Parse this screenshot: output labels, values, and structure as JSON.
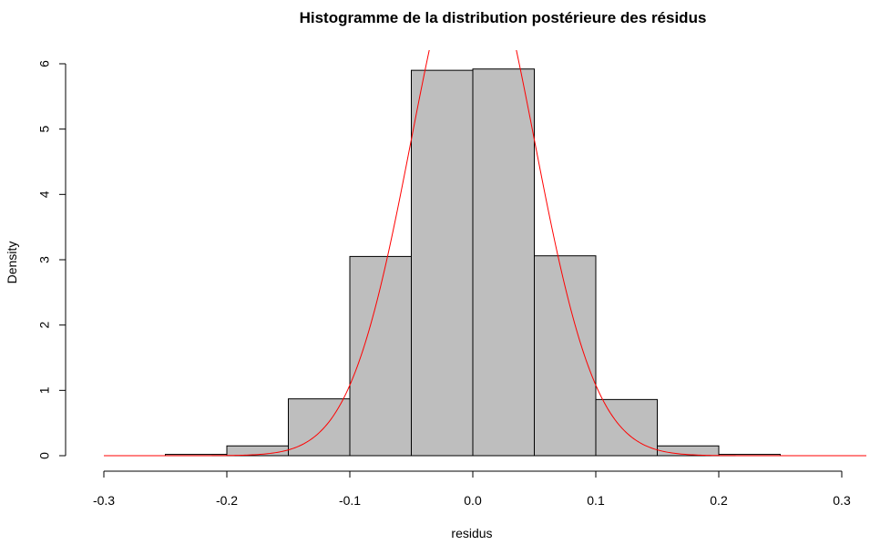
{
  "chart_data": {
    "type": "bar",
    "subtype": "histogram",
    "title": "Histogramme de la distribution postérieure des résidus",
    "xlabel": "residus",
    "ylabel": "Density",
    "xlim": [
      -0.3,
      0.32
    ],
    "ylim": [
      0,
      6
    ],
    "xticks": [
      "-0.3",
      "-0.2",
      "-0.1",
      "0.0",
      "0.1",
      "0.2",
      "0.3"
    ],
    "yticks": [
      "0",
      "1",
      "2",
      "3",
      "4",
      "5",
      "6"
    ],
    "bins": [
      {
        "x0": -0.25,
        "x1": -0.2,
        "density": 0.02
      },
      {
        "x0": -0.2,
        "x1": -0.15,
        "density": 0.15
      },
      {
        "x0": -0.15,
        "x1": -0.1,
        "density": 0.87
      },
      {
        "x0": -0.1,
        "x1": -0.05,
        "density": 3.05
      },
      {
        "x0": -0.05,
        "x1": 0.0,
        "density": 5.9
      },
      {
        "x0": 0.0,
        "x1": 0.05,
        "density": 5.92
      },
      {
        "x0": 0.05,
        "x1": 0.1,
        "density": 3.06
      },
      {
        "x0": 0.1,
        "x1": 0.15,
        "density": 0.86
      },
      {
        "x0": 0.15,
        "x1": 0.2,
        "density": 0.15
      },
      {
        "x0": 0.2,
        "x1": 0.25,
        "density": 0.02
      }
    ],
    "bar_fill": "#bebebe",
    "bar_stroke": "#000000",
    "overlay": {
      "type": "normal_density",
      "mean": 0.0,
      "sd": 0.05,
      "x_range": [
        -0.3,
        0.32
      ],
      "color": "#ff0000"
    },
    "grid": false,
    "legend": "none"
  }
}
